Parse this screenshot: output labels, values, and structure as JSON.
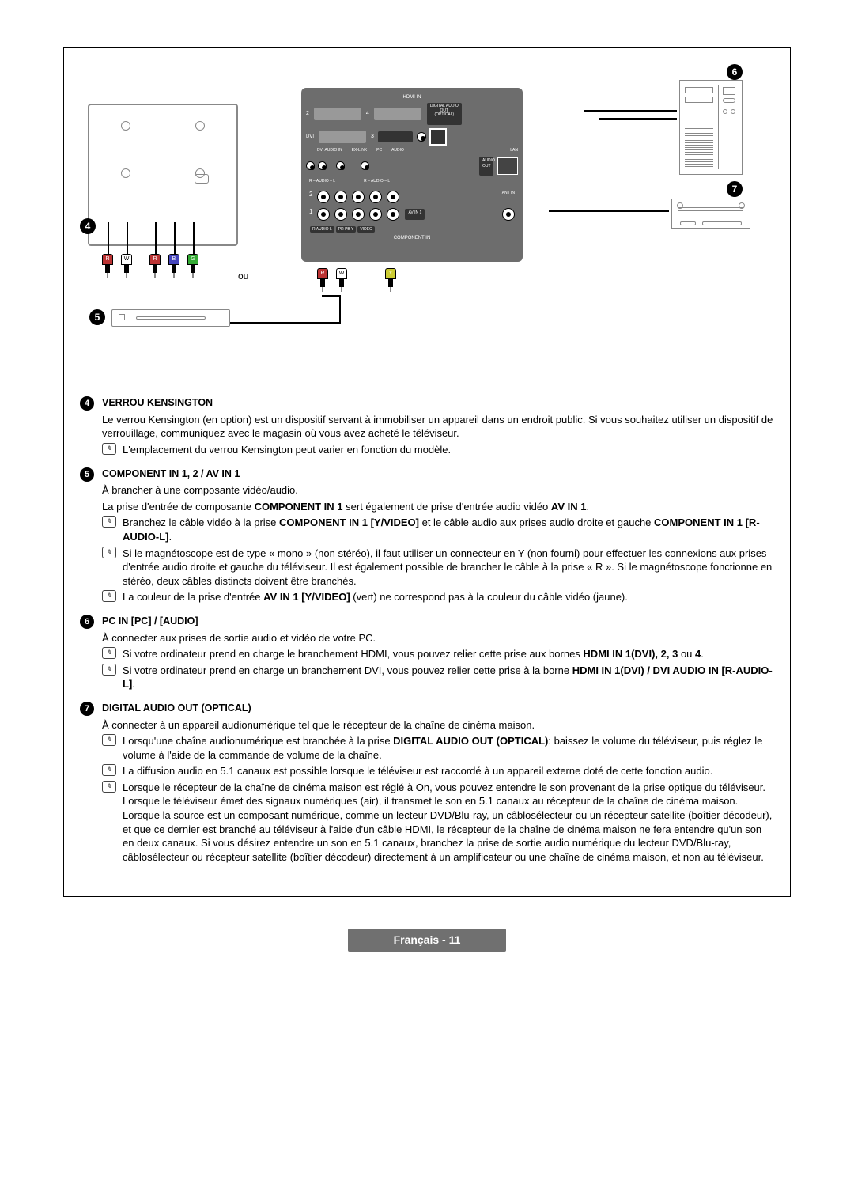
{
  "diagram": {
    "callouts": {
      "c4": "4",
      "c5": "5",
      "c6": "6",
      "c7": "7"
    },
    "ou_label": "ou",
    "panel_labels": {
      "hdmi_in": "HDMI IN",
      "dvi": "DVI",
      "dvi_audio": "DVI AUDIO IN",
      "ex_link": "EX-LINK",
      "pc": "PC",
      "audio": "AUDIO",
      "digital_audio": "DIGITAL\nAUDIO OUT\n(OPTICAL)",
      "lan": "LAN",
      "audio_out": "AUDIO\nOUT",
      "audio_lr": "R – AUDIO – L",
      "ant_in": "ANT IN",
      "av_in1": "AV\nIN 1",
      "component_in": "COMPONENT IN",
      "video": "VIDEO"
    },
    "plug_groups": {
      "top_cables": [
        "R",
        "W",
        "B",
        "G"
      ],
      "bottom_left": [
        "R",
        "W",
        "Y"
      ]
    }
  },
  "sections": [
    {
      "num": "4",
      "title": "VERROU KENSINGTON",
      "paras": [
        "Le verrou Kensington (en option) est un dispositif servant à immobiliser un appareil dans un endroit public. Si vous souhaitez utiliser un dispositif de verrouillage, communiquez avec le magasin où vous avez acheté le téléviseur."
      ],
      "notes": [
        {
          "text_html": "L'emplacement du verrou Kensington peut varier en fonction du modèle."
        }
      ]
    },
    {
      "num": "5",
      "title": "COMPONENT IN 1, 2 / AV IN 1",
      "paras": [
        "À brancher à une composante vidéo/audio.",
        "La prise d'entrée de composante <b>COMPONENT IN 1</b> sert également de prise d'entrée audio vidéo <b>AV IN 1</b>."
      ],
      "notes": [
        {
          "text_html": "Branchez le câble vidéo à la prise <b>COMPONENT IN 1 [Y/VIDEO]</b> et le câble audio aux prises audio droite et gauche <b>COMPONENT IN 1 [R-AUDIO-L]</b>."
        },
        {
          "text_html": "Si le magnétoscope est de type « mono » (non stéréo), il faut utiliser un connecteur en Y (non fourni) pour effectuer les connexions aux prises d'entrée audio droite et gauche du téléviseur. Il est également possible de brancher le câble à la prise « R ». Si le magnétoscope fonctionne en stéréo, deux câbles distincts doivent être branchés."
        },
        {
          "text_html": "La couleur de la prise d'entrée <b>AV IN 1 [Y/VIDEO]</b> (vert) ne correspond pas à la couleur du câble vidéo (jaune)."
        }
      ]
    },
    {
      "num": "6",
      "title": "PC IN [PC] / [AUDIO]",
      "paras": [
        "À connecter aux prises de sortie audio et vidéo de votre PC."
      ],
      "notes": [
        {
          "text_html": "Si votre ordinateur prend en charge le branchement HDMI, vous pouvez relier cette prise aux bornes <b>HDMI IN 1(DVI), 2, 3</b> ou <b>4</b>."
        },
        {
          "text_html": "Si votre ordinateur prend en charge un branchement DVI, vous pouvez relier cette prise à la borne <b>HDMI IN 1(DVI) / DVI AUDIO IN [R-AUDIO-L]</b>."
        }
      ]
    },
    {
      "num": "7",
      "title": "DIGITAL AUDIO OUT (OPTICAL)",
      "paras": [
        "À connecter à un appareil audionumérique tel que le récepteur de la chaîne de cinéma maison."
      ],
      "notes": [
        {
          "text_html": "Lorsqu'une chaîne audionumérique est branchée à la prise <b>DIGITAL AUDIO OUT (OPTICAL)</b>: baissez le volume du téléviseur, puis réglez le volume à l'aide de la commande de volume de la chaîne."
        },
        {
          "text_html": "La diffusion audio en 5.1 canaux est possible lorsque le téléviseur est raccordé à un appareil externe doté de cette fonction audio."
        },
        {
          "text_html": "Lorsque le récepteur de la chaîne de cinéma maison est réglé à On, vous pouvez entendre le son provenant de la prise optique du téléviseur. Lorsque le téléviseur émet des signaux numériques (air), il transmet le son en 5.1 canaux au récepteur de la chaîne de cinéma maison. Lorsque la source est un composant numérique, comme un lecteur DVD/Blu-ray, un câblosélecteur ou un récepteur satellite (boîtier décodeur), et que ce dernier est branché au téléviseur à l'aide d'un câble HDMI, le récepteur de la chaîne de cinéma maison ne fera entendre qu'un son en deux canaux.  Si vous désirez entendre un son en 5.1 canaux, branchez la prise de sortie audio numérique du lecteur DVD/Blu-ray, câblosélecteur ou récepteur satellite (boîtier décodeur) directement à un amplificateur ou une chaîne de cinéma maison, et non au téléviseur."
        }
      ]
    }
  ],
  "footer": {
    "language": "Français",
    "page": "11"
  },
  "colors": {
    "panel_bg": "#6d6d6d",
    "footer_bg": "#707070",
    "text": "#000000",
    "plug_red": "#b33333",
    "plug_blue": "#4444bb",
    "plug_green": "#33aa33",
    "plug_yellow": "#cccc33"
  }
}
